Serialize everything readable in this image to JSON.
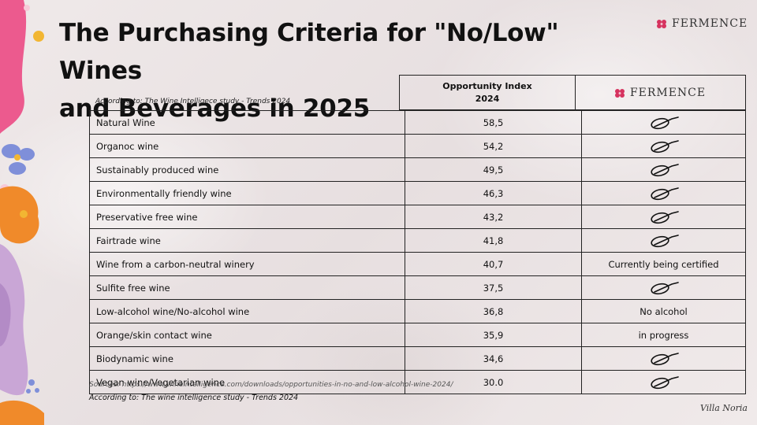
{
  "title_line1": "The Purchasing Criteria for \"No/Low\" Wines",
  "title_line2": "and Beverages in 2025",
  "brand": "FERMENCE",
  "according_top": "According to: The Wine Intelligece study - Trends 2024",
  "header": {
    "index_line1": "Opportunity Index",
    "index_line2": "2024"
  },
  "rows": [
    {
      "name": "Natural Wine",
      "value": "58,5",
      "status": ""
    },
    {
      "name": "Organoc wine",
      "value": "54,2",
      "status": ""
    },
    {
      "name": "Sustainably produced wine",
      "value": "49,5",
      "status": ""
    },
    {
      "name": "Environmentally friendly wine",
      "value": "46,3",
      "status": ""
    },
    {
      "name": "Preservative free wine",
      "value": "43,2",
      "status": ""
    },
    {
      "name": "Fairtrade wine",
      "value": "41,8",
      "status": ""
    },
    {
      "name": "Wine from a carbon-neutral winery",
      "value": "40,7",
      "status": "Currently being certified"
    },
    {
      "name": "Sulfite free wine",
      "value": "37,5",
      "status": ""
    },
    {
      "name": "Low-alcohol wine/No-alcohol wine",
      "value": "36,8",
      "status": "No alcohol"
    },
    {
      "name": "Orange/skin contact wine",
      "value": "35,9",
      "status": "in progress"
    },
    {
      "name": "Biodynamic wine",
      "value": "34,6",
      "status": ""
    },
    {
      "name": "Vegan wine/Vegetarian wine",
      "value": "30.0",
      "status": ""
    }
  ],
  "sources": "Sources: https://www.wineintelligence.com/downloads/opportunities-in-no-and-low-alcohol-wine-2024/",
  "according_bottom": "According to: The wine intelligence study - Trends 2024",
  "signature": "Villa Noria",
  "colors": {
    "pink": "#ec5a8e",
    "orange": "#f08a2a",
    "lavender": "#c9a6d6",
    "blue": "#7f8fd9",
    "yellow": "#f2b632",
    "brand_flower": "#d6335f"
  }
}
